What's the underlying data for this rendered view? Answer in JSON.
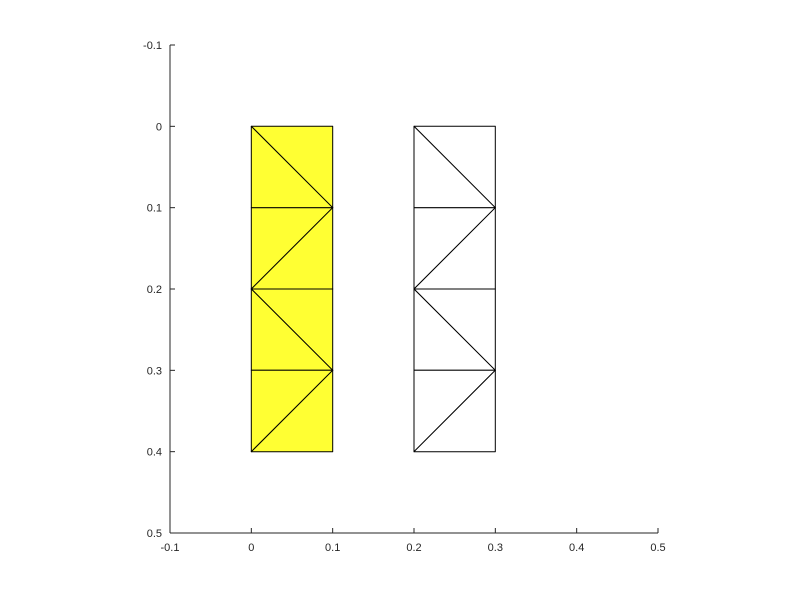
{
  "chart_data": {
    "type": "mesh",
    "title": "",
    "xlabel": "",
    "ylabel": "",
    "xlim": [
      -0.1,
      0.5
    ],
    "ylim": [
      -0.1,
      0.5
    ],
    "y_direction": "reversed",
    "grid": false,
    "x_ticks": [
      -0.1,
      0,
      0.1,
      0.2,
      0.3,
      0.4,
      0.5
    ],
    "y_ticks": [
      -0.1,
      0,
      0.1,
      0.2,
      0.3,
      0.4,
      0.5
    ],
    "x_tick_labels": [
      "-0.1",
      "0",
      "0.1",
      "0.2",
      "0.3",
      "0.4",
      "0.5"
    ],
    "y_tick_labels": [
      "-0.1",
      "0",
      "0.1",
      "0.2",
      "0.3",
      "0.4",
      "0.5"
    ],
    "meshes": [
      {
        "face_color": "#ffff33",
        "edge_color": "#000000",
        "triangles": [
          [
            [
              0,
              0
            ],
            [
              0.1,
              0
            ],
            [
              0.1,
              0.1
            ]
          ],
          [
            [
              0,
              0
            ],
            [
              0,
              0.1
            ],
            [
              0.1,
              0.1
            ]
          ],
          [
            [
              0,
              0.1
            ],
            [
              0.1,
              0.1
            ],
            [
              0,
              0.2
            ]
          ],
          [
            [
              0.1,
              0.1
            ],
            [
              0.1,
              0.2
            ],
            [
              0,
              0.2
            ]
          ],
          [
            [
              0,
              0.2
            ],
            [
              0.1,
              0.2
            ],
            [
              0.1,
              0.3
            ]
          ],
          [
            [
              0,
              0.2
            ],
            [
              0,
              0.3
            ],
            [
              0.1,
              0.3
            ]
          ],
          [
            [
              0,
              0.3
            ],
            [
              0.1,
              0.3
            ],
            [
              0,
              0.4
            ]
          ],
          [
            [
              0.1,
              0.3
            ],
            [
              0.1,
              0.4
            ],
            [
              0,
              0.4
            ]
          ]
        ]
      },
      {
        "face_color": "#ffffff",
        "edge_color": "#000000",
        "triangles": [
          [
            [
              0.2,
              0
            ],
            [
              0.3,
              0
            ],
            [
              0.3,
              0.1
            ]
          ],
          [
            [
              0.2,
              0
            ],
            [
              0.2,
              0.1
            ],
            [
              0.3,
              0.1
            ]
          ],
          [
            [
              0.2,
              0.1
            ],
            [
              0.3,
              0.1
            ],
            [
              0.2,
              0.2
            ]
          ],
          [
            [
              0.3,
              0.1
            ],
            [
              0.3,
              0.2
            ],
            [
              0.2,
              0.2
            ]
          ],
          [
            [
              0.2,
              0.2
            ],
            [
              0.3,
              0.2
            ],
            [
              0.3,
              0.3
            ]
          ],
          [
            [
              0.2,
              0.2
            ],
            [
              0.2,
              0.3
            ],
            [
              0.3,
              0.3
            ]
          ],
          [
            [
              0.2,
              0.3
            ],
            [
              0.3,
              0.3
            ],
            [
              0.2,
              0.4
            ]
          ],
          [
            [
              0.3,
              0.3
            ],
            [
              0.3,
              0.4
            ],
            [
              0.2,
              0.4
            ]
          ]
        ]
      }
    ]
  }
}
